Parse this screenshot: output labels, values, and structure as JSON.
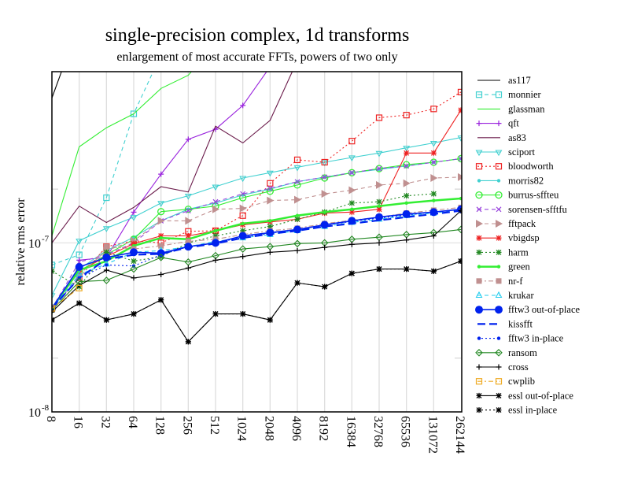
{
  "chart_data": {
    "type": "line",
    "title": "single-precision complex, 1d transforms",
    "subtitle": "enlargement of most accurate FFTs, powers of two only",
    "xlabel": "",
    "ylabel": "relative rms error",
    "x_scale": "log2",
    "y_scale": "log10",
    "ylim": [
      1e-08,
      1.03e-06
    ],
    "grid": "vertical major lines, light gray",
    "legend_position": "right outside",
    "x": [
      8,
      16,
      32,
      64,
      128,
      256,
      512,
      1024,
      2048,
      4096,
      8192,
      16384,
      32768,
      65536,
      131072,
      262144
    ],
    "x_tick_labels": [
      "8",
      "16",
      "32",
      "64",
      "128",
      "256",
      "512",
      "1024",
      "2048",
      "4096",
      "8192",
      "16384",
      "32768",
      "65536",
      "131072",
      "262144"
    ],
    "y_tick_labels": [
      {
        "value": 1e-08,
        "mantissa": "10",
        "exp": "-8"
      },
      {
        "value": 1e-07,
        "mantissa": "10",
        "exp": "-7"
      }
    ],
    "series": [
      {
        "name": "as117",
        "color": "#000000",
        "dash": "solid",
        "marker": "none",
        "values": [
          7.2e-07,
          2e-06,
          null,
          null,
          null,
          null,
          null,
          null,
          null,
          null,
          null,
          null,
          null,
          null,
          null,
          null
        ]
      },
      {
        "name": "monnier",
        "color": "#40d0d0",
        "dash": "dash",
        "marker": "square-open",
        "values": [
          7.4e-08,
          8.5e-08,
          1.85e-07,
          5.8e-07,
          1.3e-06,
          null,
          null,
          null,
          null,
          null,
          null,
          null,
          null,
          null,
          null,
          null
        ]
      },
      {
        "name": "glassman",
        "color": "#33ee33",
        "dash": "solid",
        "marker": "none",
        "values": [
          1.1e-07,
          3.7e-07,
          4.8e-07,
          5.8e-07,
          8.2e-07,
          9.8e-07,
          1.5e-06,
          null,
          null,
          null,
          null,
          null,
          null,
          null,
          null,
          null
        ]
      },
      {
        "name": "qft",
        "color": "#9922dd",
        "dash": "solid",
        "marker": "plus",
        "values": [
          null,
          7.9e-08,
          8.2e-08,
          1.52e-07,
          2.55e-07,
          4.1e-07,
          4.7e-07,
          6.5e-07,
          1.1e-06,
          1.9e-06,
          null,
          null,
          null,
          null,
          null,
          null
        ]
      },
      {
        "name": "as83",
        "color": "#6a1a4a",
        "dash": "solid",
        "marker": "none",
        "values": [
          1e-07,
          1.65e-07,
          1.32e-07,
          1.62e-07,
          2.15e-07,
          2e-07,
          4.9e-07,
          3.9e-07,
          5.3e-07,
          1.2e-06,
          null,
          null,
          null,
          null,
          null,
          null
        ]
      },
      {
        "name": "sciport",
        "color": "#40d0d0",
        "dash": "solid",
        "marker": "triangle-down",
        "values": [
          4.9e-08,
          1.03e-07,
          1.22e-07,
          1.42e-07,
          1.72e-07,
          1.9e-07,
          2.15e-07,
          2.42e-07,
          2.6e-07,
          2.8e-07,
          3e-07,
          3.2e-07,
          3.4e-07,
          3.65e-07,
          3.9e-07,
          4.2e-07
        ]
      },
      {
        "name": "bloodworth",
        "color": "#ee2222",
        "dash": "dot",
        "marker": "square-open",
        "values": [
          4.1e-08,
          6.2e-08,
          9.5e-08,
          1.03e-07,
          1e-07,
          1.17e-07,
          1.18e-07,
          1.45e-07,
          2.25e-07,
          3.1e-07,
          3e-07,
          4e-07,
          5.5e-07,
          5.7e-07,
          6.2e-07,
          7.8e-07
        ]
      },
      {
        "name": "morris82",
        "color": "#40d0d0",
        "dash": "solid",
        "marker": "dot-small",
        "values": [
          4.1e-08,
          7e-08,
          9e-08,
          1.08e-07,
          1.35e-07,
          1.58e-07,
          1.72e-07,
          1.92e-07,
          2.08e-07,
          2.3e-07,
          2.45e-07,
          2.6e-07,
          2.72e-07,
          2.85e-07,
          3e-07,
          3.15e-07
        ]
      },
      {
        "name": "burrus-sffteu",
        "color": "#33ee33",
        "dash": "solid",
        "marker": "circle-open",
        "values": [
          4.1e-08,
          6.8e-08,
          8.5e-08,
          1.05e-07,
          1.53e-07,
          1.58e-07,
          1.65e-07,
          1.85e-07,
          2.02e-07,
          2.2e-07,
          2.42e-07,
          2.6e-07,
          2.75e-07,
          2.9e-07,
          3e-07,
          3.15e-07
        ]
      },
      {
        "name": "sorensen-sfftfu",
        "color": "#9944dd",
        "dash": "dash",
        "marker": "x",
        "values": [
          4.1e-08,
          7.7e-08,
          8.5e-08,
          1e-07,
          1.35e-07,
          1.55e-07,
          1.75e-07,
          1.95e-07,
          2.1e-07,
          2.3e-07,
          2.45e-07,
          2.6e-07,
          2.75e-07,
          2.85e-07,
          3e-07,
          3.15e-07
        ]
      },
      {
        "name": "fftpack",
        "color": "#c09090",
        "dash": "dash",
        "marker": "triangle-right",
        "values": [
          4.1e-08,
          6.5e-08,
          9e-08,
          1.03e-07,
          1.35e-07,
          1.35e-07,
          1.58e-07,
          1.6e-07,
          1.78e-07,
          1.8e-07,
          1.95e-07,
          2.05e-07,
          2.2e-07,
          2.25e-07,
          2.42e-07,
          2.45e-07
        ]
      },
      {
        "name": "vbigdsp",
        "color": "#ee2222",
        "dash": "solid",
        "marker": "star",
        "values": [
          4.1e-08,
          6.8e-08,
          8.3e-08,
          9.9e-08,
          1.1e-07,
          1.1e-07,
          1.18e-07,
          1.28e-07,
          1.33e-07,
          1.38e-07,
          1.5e-07,
          1.52e-07,
          1.58e-07,
          3.4e-07,
          3.4e-07,
          6.1e-07
        ]
      },
      {
        "name": "harm",
        "color": "#228822",
        "dash": "dot",
        "marker": "star",
        "values": [
          6.8e-08,
          5.5e-08,
          8.8e-08,
          7.8e-08,
          8.3e-08,
          1e-07,
          1.1e-07,
          1.18e-07,
          1.25e-07,
          1.38e-07,
          1.52e-07,
          1.72e-07,
          1.75e-07,
          1.9e-07,
          1.95e-07,
          null
        ]
      },
      {
        "name": "green",
        "color": "#33ee33",
        "dash": "solid-thick",
        "marker": "dot-small",
        "values": [
          4.1e-08,
          6.9e-08,
          7.8e-08,
          9.6e-08,
          1.07e-07,
          1.05e-07,
          1.18e-07,
          1.3e-07,
          1.35e-07,
          1.45e-07,
          1.52e-07,
          1.58e-07,
          1.65e-07,
          1.72e-07,
          1.78e-07,
          1.83e-07
        ]
      },
      {
        "name": "nr-f",
        "color": "#c09090",
        "dash": "dashdot",
        "marker": "square-filled",
        "values": [
          4.1e-08,
          6.2e-08,
          9.5e-08,
          9.2e-08,
          9.6e-08,
          1.02e-07,
          1.05e-07,
          1.12e-07,
          1.18e-07,
          1.22e-07,
          1.3e-07,
          1.36e-07,
          1.42e-07,
          1.5e-07,
          1.56e-07,
          1.62e-07
        ]
      },
      {
        "name": "krukar",
        "color": "#22ccee",
        "dash": "dash",
        "marker": "triangle-open",
        "values": [
          4.1e-08,
          6.5e-08,
          7.5e-08,
          8.8e-08,
          9e-08,
          9.5e-08,
          1.02e-07,
          1.07e-07,
          1.12e-07,
          1.18e-07,
          1.25e-07,
          1.32e-07,
          1.38e-07,
          1.45e-07,
          1.5e-07,
          1.58e-07
        ]
      },
      {
        "name": "fftw3 out-of-place",
        "color": "#0022ee",
        "dash": "solid",
        "marker": "circle-filled",
        "values": [
          4.1e-08,
          7.2e-08,
          8.2e-08,
          8.8e-08,
          8.7e-08,
          9.5e-08,
          1e-07,
          1.1e-07,
          1.15e-07,
          1.2e-07,
          1.28e-07,
          1.35e-07,
          1.42e-07,
          1.48e-07,
          1.52e-07,
          1.58e-07
        ]
      },
      {
        "name": "kissfft",
        "color": "#0022ee",
        "dash": "longdash",
        "marker": "none",
        "values": [
          4.1e-08,
          6.2e-08,
          8e-08,
          8.5e-08,
          8.6e-08,
          9.4e-08,
          9.9e-08,
          1.07e-07,
          1.13e-07,
          1.18e-07,
          1.25e-07,
          1.3e-07,
          1.36e-07,
          1.42e-07,
          1.48e-07,
          1.55e-07
        ]
      },
      {
        "name": "fftw3 in-place",
        "color": "#0022ee",
        "dash": "dot",
        "marker": "dot-small",
        "values": [
          4.1e-08,
          6.2e-08,
          7.4e-08,
          7.3e-08,
          8.5e-08,
          9.5e-08,
          1e-07,
          1.08e-07,
          1.14e-07,
          1.2e-07,
          1.27e-07,
          1.34e-07,
          1.4e-07,
          1.46e-07,
          1.52e-07,
          1.58e-07
        ]
      },
      {
        "name": "ransom",
        "color": "#228822",
        "dash": "solid",
        "marker": "diamond-open",
        "values": [
          4e-08,
          5.9e-08,
          6e-08,
          7e-08,
          8.2e-08,
          7.7e-08,
          8.4e-08,
          9.2e-08,
          9.5e-08,
          9.9e-08,
          1e-07,
          1.05e-07,
          1.08e-07,
          1.12e-07,
          1.15e-07,
          1.2e-07
        ]
      },
      {
        "name": "cross",
        "color": "#000000",
        "dash": "solid",
        "marker": "plus",
        "values": [
          3.9e-08,
          5.6e-08,
          6.9e-08,
          6.2e-08,
          6.5e-08,
          7.1e-08,
          7.9e-08,
          8.3e-08,
          8.8e-08,
          9e-08,
          9.4e-08,
          9.8e-08,
          1e-07,
          1.04e-07,
          1.1e-07,
          1.55e-07
        ]
      },
      {
        "name": "cwplib",
        "color": "#eeaa22",
        "dash": "dashdot",
        "marker": "square-open",
        "values": [
          4.1e-08,
          5.4e-08,
          null,
          null,
          null,
          null,
          null,
          null,
          null,
          null,
          null,
          null,
          null,
          null,
          null,
          null
        ]
      },
      {
        "name": "essl out-of-place",
        "color": "#000000",
        "dash": "solid",
        "marker": "star",
        "values": [
          3.5e-08,
          4.4e-08,
          3.5e-08,
          3.8e-08,
          4.6e-08,
          2.6e-08,
          3.8e-08,
          3.8e-08,
          3.5e-08,
          5.8e-08,
          5.5e-08,
          6.6e-08,
          7e-08,
          7e-08,
          6.8e-08,
          7.8e-08
        ]
      },
      {
        "name": "essl in-place",
        "color": "#000000",
        "dash": "dot",
        "marker": "star",
        "values": [
          3.5e-08,
          4.4e-08,
          3.5e-08,
          3.8e-08,
          4.6e-08,
          2.6e-08,
          3.8e-08,
          3.8e-08,
          3.5e-08,
          5.8e-08,
          5.5e-08,
          6.6e-08,
          7e-08,
          7e-08,
          6.8e-08,
          7.8e-08
        ]
      }
    ]
  }
}
